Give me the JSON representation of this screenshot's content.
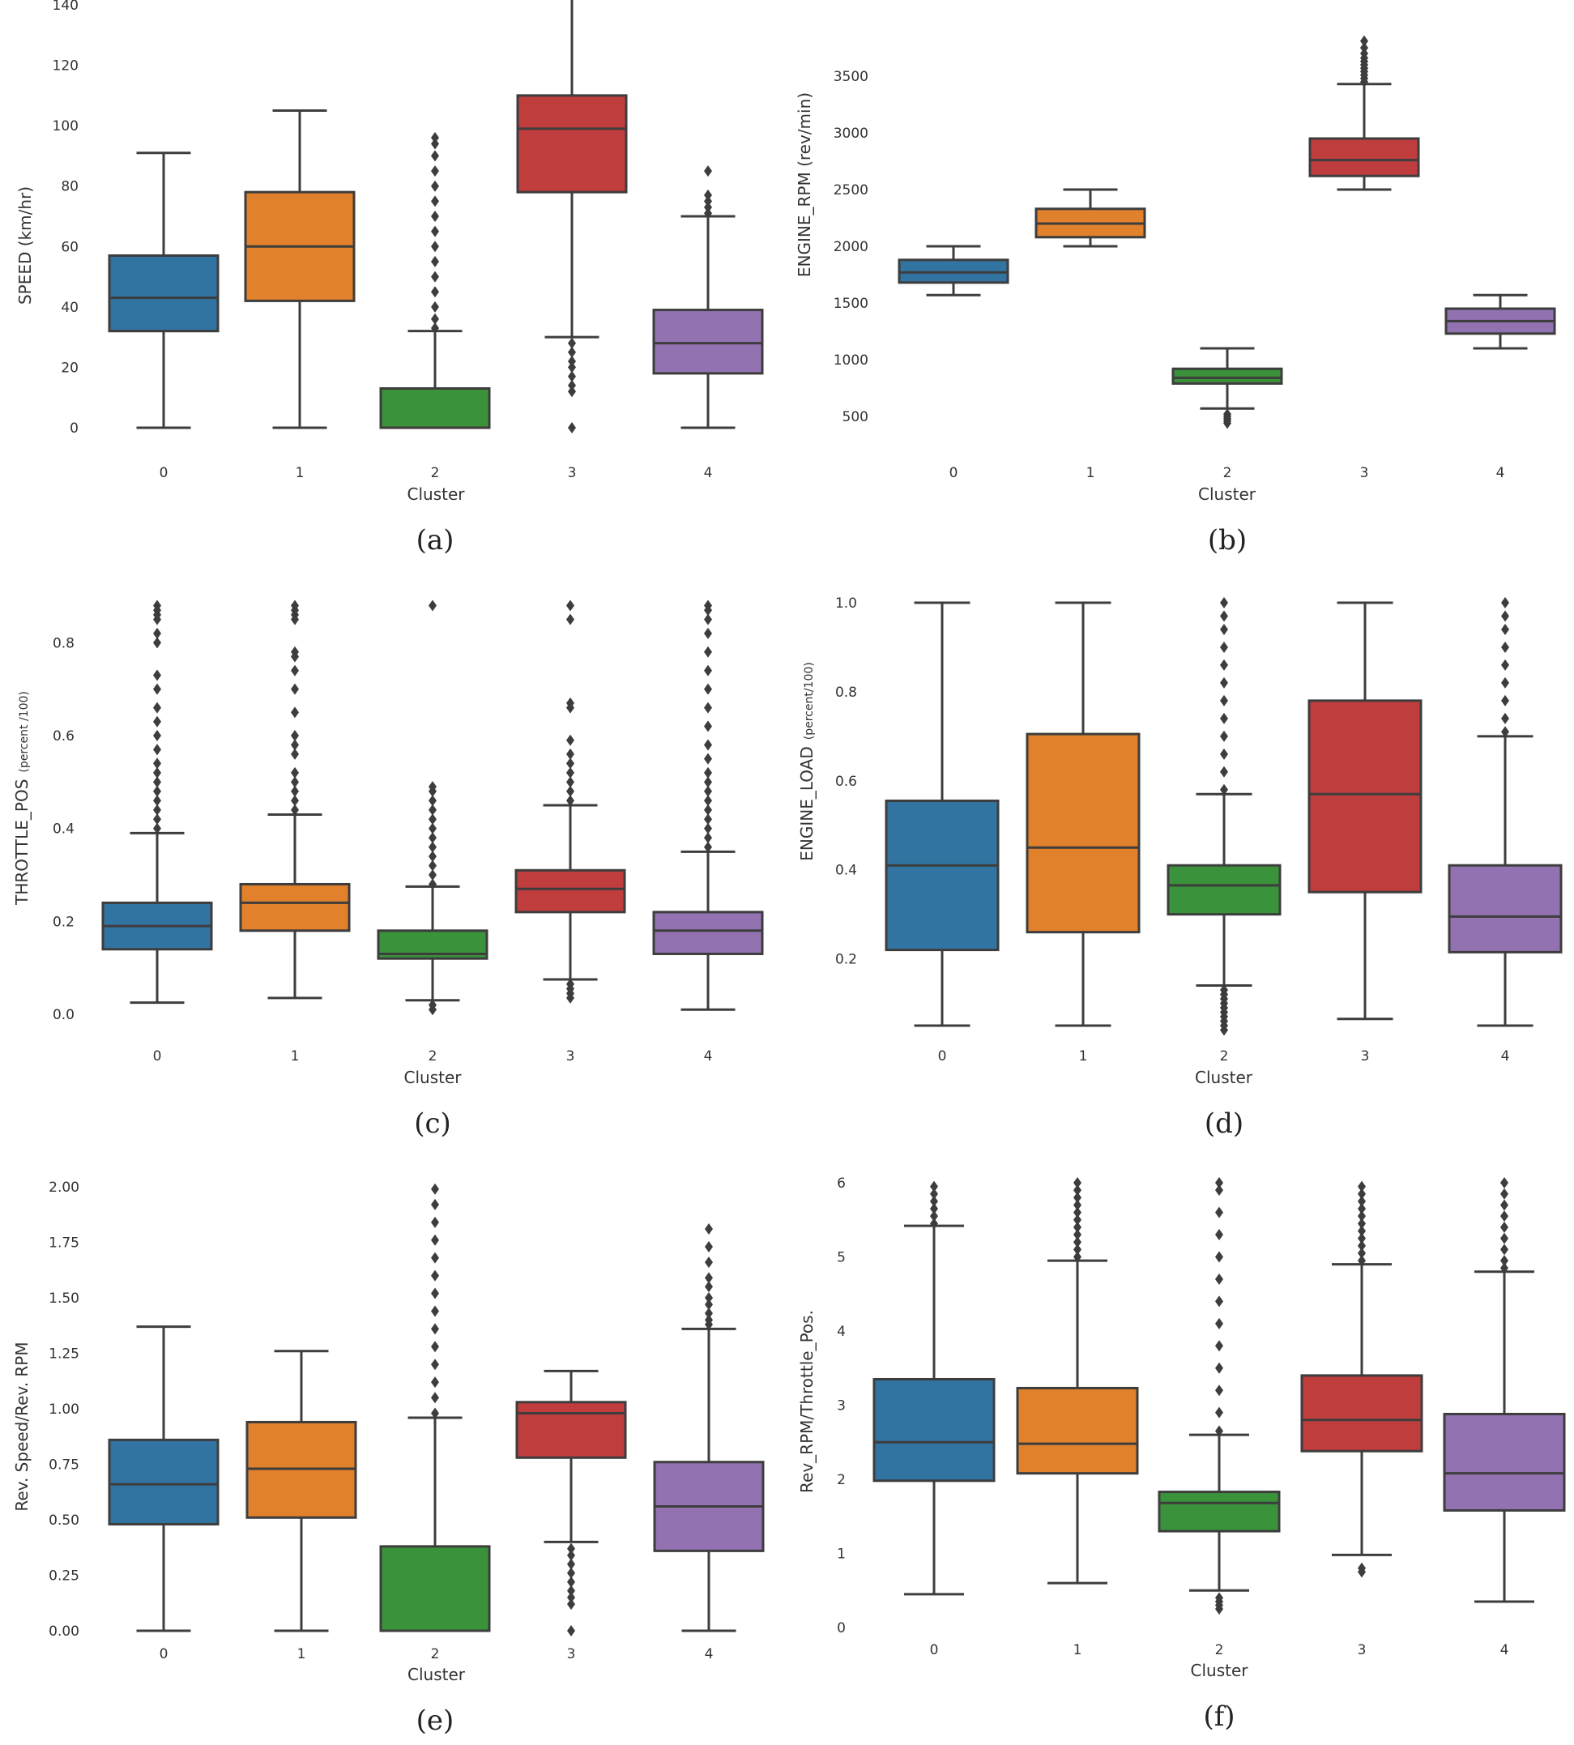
{
  "chart_data": [
    {
      "type": "box",
      "panel": "(a)",
      "xlabel": "Cluster",
      "ylabel": "SPEED (km/hr)",
      "ylim": [
        0,
        140
      ],
      "yticks": [
        0,
        20,
        40,
        60,
        80,
        100,
        120,
        140
      ],
      "ytick_labels": [
        "0",
        "20",
        "40",
        "60",
        "80",
        "100",
        "120",
        "140"
      ],
      "categories": [
        "0",
        "1",
        "2",
        "3",
        "4"
      ],
      "colors": [
        "#3274a1",
        "#e1812c",
        "#3a923a",
        "#c03d3e",
        "#9372b2"
      ],
      "boxes": [
        {
          "whislo": 0,
          "q1": 32,
          "med": 43,
          "q3": 57,
          "whishi": 91,
          "fliers": []
        },
        {
          "whislo": 0,
          "q1": 42,
          "med": 60,
          "q3": 78,
          "whishi": 105,
          "fliers": []
        },
        {
          "whislo": 0,
          "q1": 0,
          "med": 0,
          "q3": 13,
          "whishi": 32,
          "fliers": [
            33,
            36,
            40,
            45,
            50,
            55,
            60,
            65,
            70,
            75,
            80,
            85,
            90,
            94,
            96
          ]
        },
        {
          "whislo": 30,
          "q1": 78,
          "med": 99,
          "q3": 110,
          "whishi": 143,
          "fliers": [
            0,
            12,
            14,
            17,
            20,
            22,
            25,
            28
          ]
        },
        {
          "whislo": 0,
          "q1": 18,
          "med": 28,
          "q3": 39,
          "whishi": 70,
          "fliers": [
            71,
            73,
            75,
            77,
            85
          ]
        }
      ]
    },
    {
      "type": "box",
      "panel": "(b)",
      "xlabel": "Cluster",
      "ylabel": "ENGINE_RPM (rev/min)",
      "ylim": [
        400,
        3850
      ],
      "yticks": [
        500,
        1000,
        1500,
        2000,
        2500,
        3000,
        3500
      ],
      "ytick_labels": [
        "500",
        "1000",
        "1500",
        "2000",
        "2500",
        "3000",
        "3500"
      ],
      "categories": [
        "0",
        "1",
        "2",
        "3",
        "4"
      ],
      "colors": [
        "#3274a1",
        "#e1812c",
        "#3a923a",
        "#c03d3e",
        "#9372b2"
      ],
      "boxes": [
        {
          "whislo": 1570,
          "q1": 1680,
          "med": 1770,
          "q3": 1880,
          "whishi": 2000,
          "fliers": []
        },
        {
          "whislo": 2000,
          "q1": 2080,
          "med": 2200,
          "q3": 2330,
          "whishi": 2500,
          "fliers": []
        },
        {
          "whislo": 570,
          "q1": 790,
          "med": 840,
          "q3": 920,
          "whishi": 1100,
          "fliers": [
            440,
            460,
            480,
            500,
            520
          ]
        },
        {
          "whislo": 2500,
          "q1": 2620,
          "med": 2760,
          "q3": 2950,
          "whishi": 3430,
          "fliers": [
            3450,
            3480,
            3510,
            3540,
            3570,
            3600,
            3630,
            3660,
            3700,
            3750,
            3810
          ]
        },
        {
          "whislo": 1100,
          "q1": 1230,
          "med": 1340,
          "q3": 1450,
          "whishi": 1570,
          "fliers": []
        }
      ]
    },
    {
      "type": "box",
      "panel": "(c)",
      "xlabel": "Cluster",
      "ylabel": "THROTTLE_POS",
      "ylabel_unit": "(percent /100)",
      "ylim": [
        0,
        0.9
      ],
      "yticks": [
        0.0,
        0.2,
        0.4,
        0.6,
        0.8
      ],
      "ytick_labels": [
        "0.0",
        "0.2",
        "0.4",
        "0.6",
        "0.8"
      ],
      "categories": [
        "0",
        "1",
        "2",
        "3",
        "4"
      ],
      "colors": [
        "#3274a1",
        "#e1812c",
        "#3a923a",
        "#c03d3e",
        "#9372b2"
      ],
      "boxes": [
        {
          "whislo": 0.025,
          "q1": 0.14,
          "med": 0.19,
          "q3": 0.24,
          "whishi": 0.39,
          "fliers": [
            0.4,
            0.42,
            0.44,
            0.46,
            0.48,
            0.5,
            0.52,
            0.54,
            0.57,
            0.6,
            0.63,
            0.66,
            0.7,
            0.73,
            0.8,
            0.82,
            0.85,
            0.86,
            0.87,
            0.88
          ]
        },
        {
          "whislo": 0.035,
          "q1": 0.18,
          "med": 0.24,
          "q3": 0.28,
          "whishi": 0.43,
          "fliers": [
            0.44,
            0.46,
            0.48,
            0.5,
            0.52,
            0.56,
            0.58,
            0.6,
            0.65,
            0.7,
            0.74,
            0.77,
            0.78,
            0.85,
            0.86,
            0.87,
            0.88
          ]
        },
        {
          "whislo": 0.03,
          "q1": 0.12,
          "med": 0.13,
          "q3": 0.18,
          "whishi": 0.275,
          "fliers": [
            0.01,
            0.02,
            0.28,
            0.3,
            0.32,
            0.34,
            0.36,
            0.38,
            0.4,
            0.42,
            0.44,
            0.46,
            0.48,
            0.49,
            0.88
          ]
        },
        {
          "whislo": 0.075,
          "q1": 0.22,
          "med": 0.27,
          "q3": 0.31,
          "whishi": 0.45,
          "fliers": [
            0.035,
            0.045,
            0.055,
            0.065,
            0.46,
            0.48,
            0.5,
            0.52,
            0.54,
            0.56,
            0.59,
            0.66,
            0.67,
            0.85,
            0.88
          ]
        },
        {
          "whislo": 0.01,
          "q1": 0.13,
          "med": 0.18,
          "q3": 0.22,
          "whishi": 0.35,
          "fliers": [
            0.36,
            0.38,
            0.4,
            0.42,
            0.44,
            0.46,
            0.48,
            0.5,
            0.52,
            0.55,
            0.58,
            0.62,
            0.66,
            0.7,
            0.74,
            0.78,
            0.82,
            0.85,
            0.87,
            0.88
          ]
        }
      ]
    },
    {
      "type": "box",
      "panel": "(d)",
      "xlabel": "Cluster",
      "ylabel": "ENGINE_LOAD",
      "ylabel_unit": "(percent/100)",
      "ylim": [
        0.03,
        1.02
      ],
      "yticks": [
        0.2,
        0.4,
        0.6,
        0.8,
        1.0
      ],
      "ytick_labels": [
        "0.2",
        "0.4",
        "0.6",
        "0.8",
        "1.0"
      ],
      "categories": [
        "0",
        "1",
        "2",
        "3",
        "4"
      ],
      "colors": [
        "#3274a1",
        "#e1812c",
        "#3a923a",
        "#c03d3e",
        "#9372b2"
      ],
      "boxes": [
        {
          "whislo": 0.05,
          "q1": 0.22,
          "med": 0.41,
          "q3": 0.555,
          "whishi": 1.0,
          "fliers": []
        },
        {
          "whislo": 0.05,
          "q1": 0.26,
          "med": 0.45,
          "q3": 0.705,
          "whishi": 1.0,
          "fliers": []
        },
        {
          "whislo": 0.14,
          "q1": 0.3,
          "med": 0.365,
          "q3": 0.41,
          "whishi": 0.57,
          "fliers": [
            0.04,
            0.05,
            0.06,
            0.07,
            0.08,
            0.09,
            0.1,
            0.11,
            0.12,
            0.13,
            0.58,
            0.62,
            0.66,
            0.7,
            0.74,
            0.78,
            0.82,
            0.86,
            0.9,
            0.94,
            0.97,
            1.0
          ]
        },
        {
          "whislo": 0.065,
          "q1": 0.35,
          "med": 0.57,
          "q3": 0.78,
          "whishi": 1.0,
          "fliers": []
        },
        {
          "whislo": 0.05,
          "q1": 0.215,
          "med": 0.295,
          "q3": 0.41,
          "whishi": 0.7,
          "fliers": [
            0.71,
            0.74,
            0.78,
            0.82,
            0.86,
            0.9,
            0.94,
            0.97,
            1.0
          ]
        }
      ]
    },
    {
      "type": "box",
      "panel": "(e)",
      "xlabel": "Cluster",
      "ylabel": "Rev. Speed/Rev. RPM",
      "ylim": [
        0,
        2.0
      ],
      "yticks": [
        0.0,
        0.25,
        0.5,
        0.75,
        1.0,
        1.25,
        1.5,
        1.75,
        2.0
      ],
      "ytick_labels": [
        "0.00",
        "0.25",
        "0.50",
        "0.75",
        "1.00",
        "1.25",
        "1.50",
        "1.75",
        "2.00"
      ],
      "categories": [
        "0",
        "1",
        "2",
        "3",
        "4"
      ],
      "colors": [
        "#3274a1",
        "#e1812c",
        "#3a923a",
        "#c03d3e",
        "#9372b2"
      ],
      "boxes": [
        {
          "whislo": 0,
          "q1": 0.48,
          "med": 0.66,
          "q3": 0.86,
          "whishi": 1.37,
          "fliers": []
        },
        {
          "whislo": 0,
          "q1": 0.51,
          "med": 0.73,
          "q3": 0.94,
          "whishi": 1.26,
          "fliers": []
        },
        {
          "whislo": 0,
          "q1": 0,
          "med": 0,
          "q3": 0.38,
          "whishi": 0.96,
          "fliers": [
            0.98,
            1.05,
            1.12,
            1.2,
            1.28,
            1.36,
            1.44,
            1.52,
            1.6,
            1.68,
            1.76,
            1.84,
            1.92,
            1.99
          ]
        },
        {
          "whislo": 0.4,
          "q1": 0.78,
          "med": 0.98,
          "q3": 1.03,
          "whishi": 1.17,
          "fliers": [
            0.0,
            0.12,
            0.15,
            0.18,
            0.22,
            0.26,
            0.3,
            0.34,
            0.37
          ]
        },
        {
          "whislo": 0,
          "q1": 0.36,
          "med": 0.56,
          "q3": 0.76,
          "whishi": 1.36,
          "fliers": [
            1.38,
            1.4,
            1.43,
            1.47,
            1.5,
            1.55,
            1.59,
            1.66,
            1.73,
            1.81
          ]
        }
      ]
    },
    {
      "type": "box",
      "panel": "(f)",
      "xlabel": "Cluster",
      "ylabel": "Rev_RPM/Throttle_Pos.",
      "ylim": [
        0,
        6
      ],
      "yticks": [
        0,
        1,
        2,
        3,
        4,
        5,
        6
      ],
      "ytick_labels": [
        "0",
        "1",
        "2",
        "3",
        "4",
        "5",
        "6"
      ],
      "categories": [
        "0",
        "1",
        "2",
        "3",
        "4"
      ],
      "colors": [
        "#3274a1",
        "#e1812c",
        "#3a923a",
        "#c03d3e",
        "#9372b2"
      ],
      "boxes": [
        {
          "whislo": 0.45,
          "q1": 1.98,
          "med": 2.5,
          "q3": 3.35,
          "whishi": 5.42,
          "fliers": [
            5.45,
            5.55,
            5.65,
            5.75,
            5.85,
            5.95
          ]
        },
        {
          "whislo": 0.6,
          "q1": 2.08,
          "med": 2.48,
          "q3": 3.23,
          "whishi": 4.95,
          "fliers": [
            5.0,
            5.1,
            5.2,
            5.3,
            5.4,
            5.5,
            5.6,
            5.7,
            5.8,
            5.9,
            6.0
          ]
        },
        {
          "whislo": 0.5,
          "q1": 1.3,
          "med": 1.68,
          "q3": 1.83,
          "whishi": 2.6,
          "fliers": [
            0.25,
            0.3,
            0.35,
            0.4,
            2.65,
            2.9,
            3.2,
            3.5,
            3.8,
            4.1,
            4.4,
            4.7,
            5.0,
            5.3,
            5.6,
            5.9,
            6.0
          ]
        },
        {
          "whislo": 0.98,
          "q1": 2.38,
          "med": 2.8,
          "q3": 3.4,
          "whishi": 4.9,
          "fliers": [
            0.75,
            0.8,
            4.95,
            5.05,
            5.15,
            5.25,
            5.35,
            5.45,
            5.55,
            5.65,
            5.75,
            5.85,
            5.95
          ]
        },
        {
          "whislo": 0.35,
          "q1": 1.58,
          "med": 2.08,
          "q3": 2.88,
          "whishi": 4.8,
          "fliers": [
            4.85,
            4.95,
            5.1,
            5.25,
            5.4,
            5.55,
            5.7,
            5.85,
            6.0
          ]
        }
      ]
    }
  ]
}
